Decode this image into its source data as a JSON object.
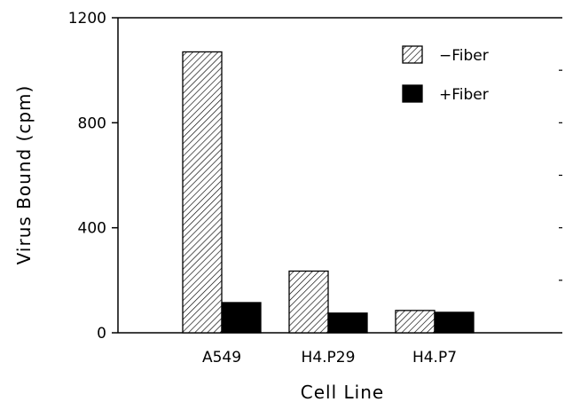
{
  "chart_data": {
    "type": "bar",
    "title": "",
    "xlabel": "Cell Line",
    "ylabel": "Virus Bound (cpm)",
    "ylim": [
      0,
      1200
    ],
    "yticks": [
      0,
      400,
      800,
      1200
    ],
    "grid": false,
    "legend_position": "top-right",
    "categories": [
      "A549",
      "H4.P29",
      "H4.P7"
    ],
    "series": [
      {
        "name": "−Fiber",
        "values": [
          1070,
          235,
          85
        ],
        "fill": "hatched"
      },
      {
        "name": "+Fiber",
        "values": [
          115,
          75,
          78
        ],
        "fill": "solid"
      }
    ],
    "colors": {
      "axis": "#000000",
      "solid_bar": "#000000",
      "hatch_bar": "#000000"
    }
  }
}
